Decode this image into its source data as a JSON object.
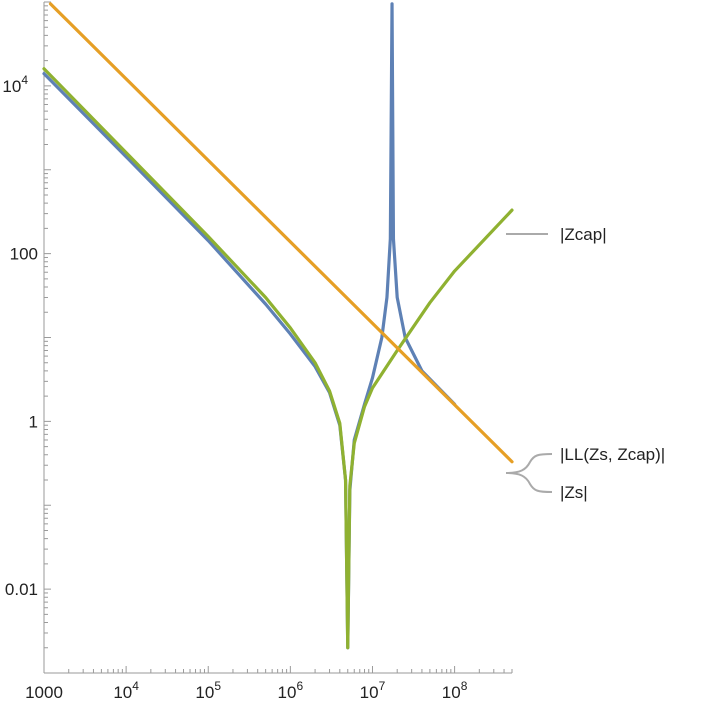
{
  "chart_data": {
    "type": "line",
    "x_scale": "log",
    "y_scale": "log",
    "xlim": [
      1000,
      500000000
    ],
    "ylim": [
      0.001,
      100000
    ],
    "x_ticks": [
      {
        "value": 1000,
        "label": "1000",
        "exp": ""
      },
      {
        "value": 10000,
        "label": "10",
        "exp": "4"
      },
      {
        "value": 100000,
        "label": "10",
        "exp": "5"
      },
      {
        "value": 1000000,
        "label": "10",
        "exp": "6"
      },
      {
        "value": 10000000,
        "label": "10",
        "exp": "7"
      },
      {
        "value": 100000000,
        "label": "10",
        "exp": "8"
      }
    ],
    "y_ticks": [
      {
        "value": 0.01,
        "label": "0.01",
        "exp": ""
      },
      {
        "value": 1,
        "label": "1",
        "exp": ""
      },
      {
        "value": 100,
        "label": "100",
        "exp": ""
      },
      {
        "value": 10000,
        "label": "10",
        "exp": "4"
      }
    ],
    "grid": false,
    "legend_placement": "right, callout labels at line ends",
    "series": [
      {
        "name": "|Zcap|",
        "color": "#e69f25",
        "points": [
          [
            1200,
            95000
          ],
          [
            500000000,
            0.33
          ]
        ]
      },
      {
        "name": "|LL(Zs, Zcap)|",
        "color": "#5e81b5",
        "points": [
          [
            1000,
            14000
          ],
          [
            10000,
            1430
          ],
          [
            100000,
            143
          ],
          [
            500000,
            25
          ],
          [
            1000000,
            11
          ],
          [
            2000000,
            4.5
          ],
          [
            3000000,
            2.2
          ],
          [
            4000000,
            0.9
          ],
          [
            4700000,
            0.2
          ],
          [
            5000000,
            0.002
          ],
          [
            5300000,
            0.15
          ],
          [
            6000000,
            0.6
          ],
          [
            8000000,
            1.6
          ],
          [
            10000000,
            3.3
          ],
          [
            13000000,
            10
          ],
          [
            15000000,
            30
          ],
          [
            16500000,
            150
          ],
          [
            17300000,
            95000
          ],
          [
            18000000,
            150
          ],
          [
            20000000,
            30
          ],
          [
            25000000,
            10
          ],
          [
            40000000,
            4
          ],
          [
            100000000,
            1.6
          ]
        ]
      },
      {
        "name": "|Zs|",
        "color": "#8fb131",
        "points": [
          [
            1000,
            16000
          ],
          [
            10000,
            1600
          ],
          [
            100000,
            160
          ],
          [
            500000,
            30
          ],
          [
            1000000,
            13
          ],
          [
            2000000,
            5
          ],
          [
            3000000,
            2.3
          ],
          [
            4000000,
            0.95
          ],
          [
            4700000,
            0.2
          ],
          [
            5000000,
            0.002
          ],
          [
            5300000,
            0.17
          ],
          [
            6000000,
            0.55
          ],
          [
            8000000,
            1.5
          ],
          [
            10000000,
            2.5
          ],
          [
            20000000,
            7
          ],
          [
            50000000,
            26
          ],
          [
            100000000,
            62
          ],
          [
            500000000,
            330
          ]
        ]
      }
    ],
    "legend": [
      {
        "label": "|Zcap|"
      },
      {
        "label": "|LL(Zs, Zcap)|"
      },
      {
        "label": "|Zs|"
      }
    ]
  }
}
